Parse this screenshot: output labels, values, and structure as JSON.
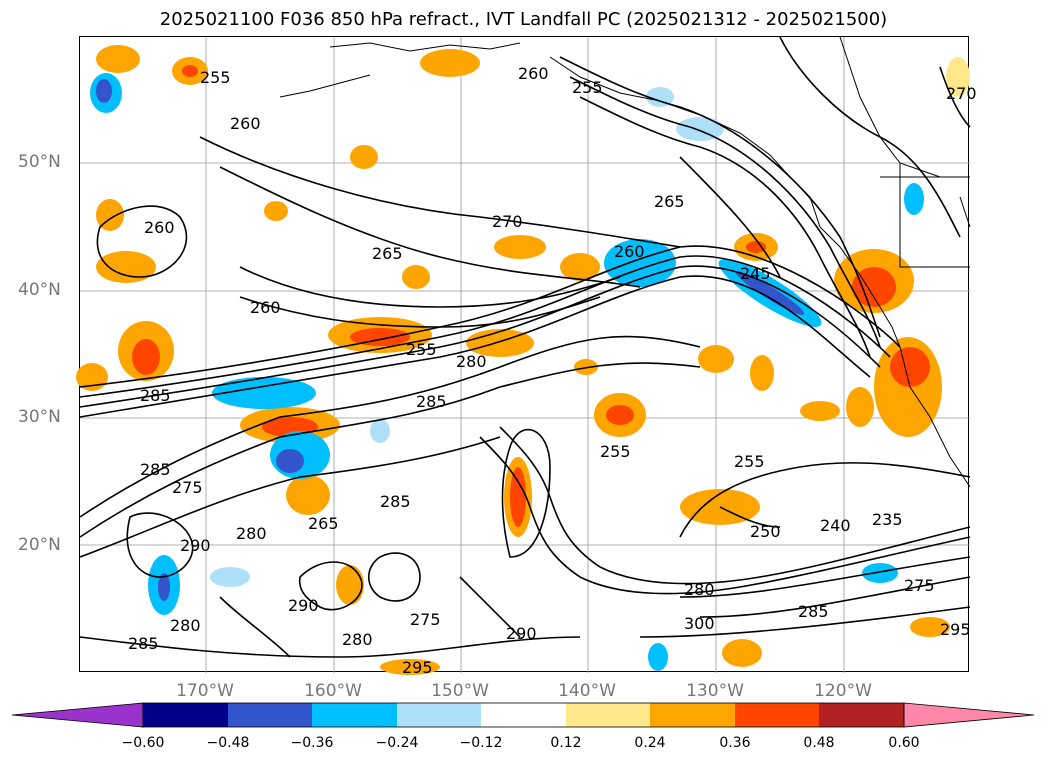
{
  "title": "2025021100 F036 850 hPa refract., IVT Landfall PC (2025021312 - 2025021500)",
  "lat_labels": [
    "50°N",
    "40°N",
    "30°N",
    "20°N"
  ],
  "lon_labels": [
    "170°W",
    "160°W",
    "150°W",
    "140°W",
    "130°W",
    "120°W"
  ],
  "colorbar": {
    "ticks": [
      "−0.60",
      "−0.48",
      "−0.36",
      "−0.24",
      "−0.12",
      "0.12",
      "0.24",
      "0.36",
      "0.48",
      "0.60"
    ],
    "colors": [
      "#9933cc",
      "#00008b",
      "#3355cc",
      "#00bfff",
      "#aee0fa",
      "#ffffff",
      "#ffe88a",
      "#ffa500",
      "#ff4500",
      "#b22222",
      "#ff88aa",
      "#ff88aa"
    ]
  },
  "contour_labels": [
    "255",
    "260",
    "260",
    "255",
    "270",
    "265",
    "260",
    "245",
    "255",
    "280",
    "285",
    "260",
    "285",
    "255",
    "265",
    "260",
    "285",
    "275",
    "280",
    "290",
    "265",
    "285",
    "290",
    "280",
    "285",
    "280",
    "295",
    "275",
    "290",
    "255",
    "240",
    "235",
    "250",
    "280",
    "300",
    "285",
    "275",
    "295",
    "270"
  ]
}
